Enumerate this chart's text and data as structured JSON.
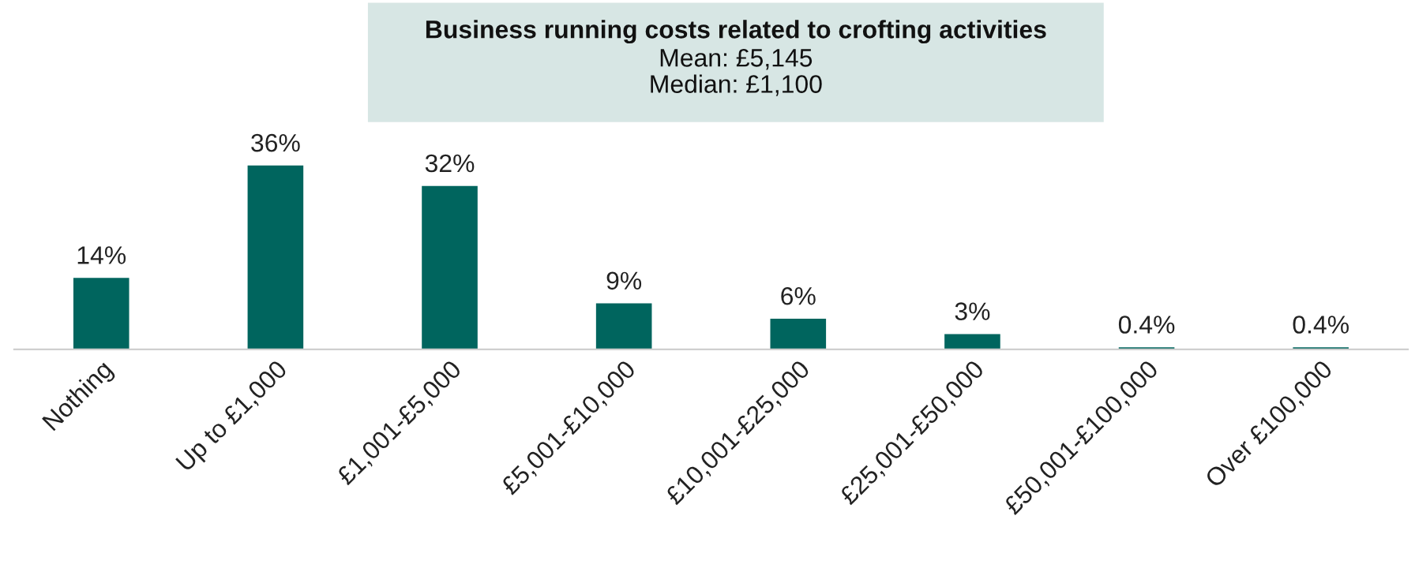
{
  "chart_data": {
    "type": "bar",
    "title": "Business running costs related to crofting activities",
    "subtitle": "Mean: £5,145\nMedian: £1,100",
    "categories": [
      "Nothing",
      "Up to £1,000",
      "£1,001-£5,000",
      "£5,001-£10,000",
      "£10,001-£25,000",
      "£25,001-£50,000",
      "£50,001-£100,000",
      "Over £100,000"
    ],
    "values": [
      14,
      36,
      32,
      9,
      6,
      3,
      0.4,
      0.4
    ],
    "value_labels": [
      "14%",
      "36%",
      "32%",
      "9%",
      "6%",
      "3%",
      "0.4%",
      "0.4%"
    ],
    "color": "#00655e",
    "grid": false,
    "legend": false
  }
}
